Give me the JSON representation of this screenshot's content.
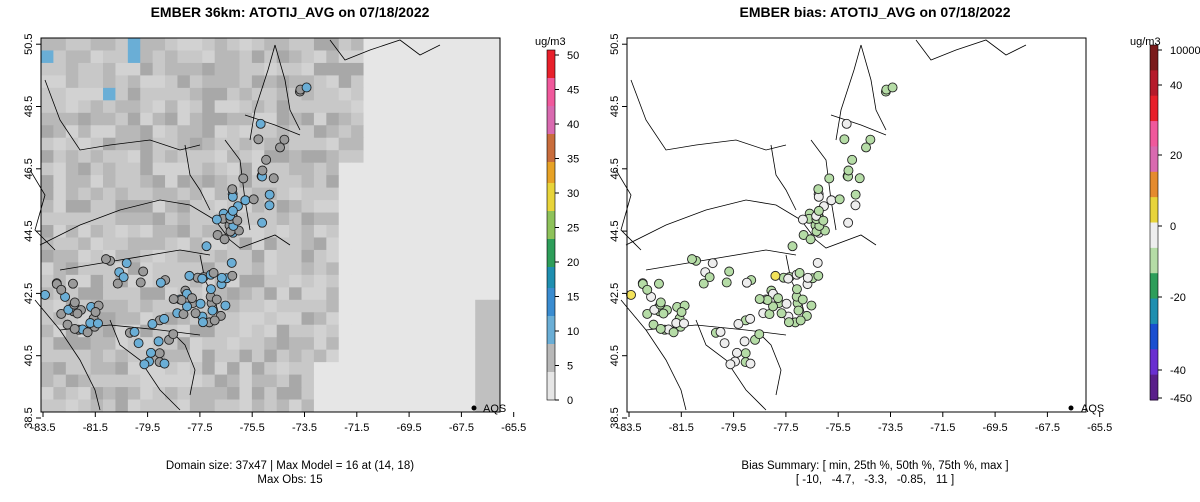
{
  "panels": {
    "left": {
      "title": "EMBER 36km: ATOTIJ_AVG on 07/18/2022",
      "caption_line1": "Domain size: 37x47 | Max Model = 16 at (14, 18)",
      "caption_line2": "Max Obs: 15",
      "legend_label": "AQS",
      "colorbar": {
        "unit": "ug/m3",
        "ticks": [
          "50",
          "45",
          "40",
          "35",
          "30",
          "25",
          "20",
          "15",
          "10",
          "5",
          "0"
        ]
      }
    },
    "right": {
      "title": "EMBER bias: ATOTIJ_AVG on 07/18/2022",
      "caption_line1": "Bias Summary: [ min, 25th %, 50th %, 75th %, max ]",
      "caption_line2": "[ -10,   -4.7,   -3.3,   -0.85,   11 ]",
      "legend_label": "AQS",
      "colorbar": {
        "unit": "ug/m3",
        "ticks": [
          "10000",
          "40",
          "20",
          "0",
          "-20",
          "-40",
          "-450"
        ]
      }
    }
  },
  "axes": {
    "x_ticks": [
      "-83.5",
      "-81.5",
      "-79.5",
      "-77.5",
      "-75.5",
      "-73.5",
      "-71.5",
      "-69.5",
      "-67.5",
      "-65.5"
    ],
    "y_ticks": [
      "38.5",
      "40.5",
      "42.5",
      "44.5",
      "46.5",
      "48.5",
      "50.5"
    ]
  },
  "map_data": {
    "lon_range": [
      -84.5,
      -65.5
    ],
    "lat_range": [
      38.3,
      50.7
    ],
    "bias_summary": {
      "min": -10,
      "p25": -4.7,
      "p50": -3.3,
      "p75": -0.85,
      "max": 11
    },
    "max_model": 16,
    "max_obs": 15,
    "colors": {
      "frame": "#000000",
      "grid_light": "#e6e6e6",
      "grid_mid": "#c8c8c8",
      "grid_dark": "#a8a8a8",
      "obs_blue": "#6aaed6",
      "obs_gray": "#9a9a9a",
      "bias_green": "#b5dca6",
      "bias_yellow": "#f2e25a",
      "bias_white": "#eeeeee"
    }
  }
}
